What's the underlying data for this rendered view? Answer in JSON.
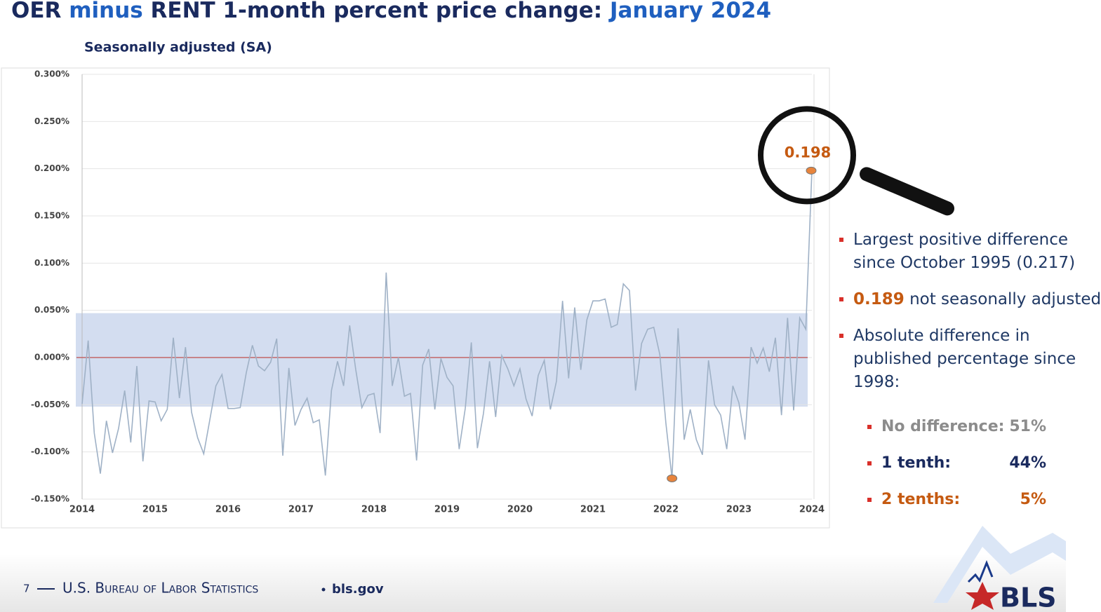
{
  "header": {
    "title_parts": [
      "OER",
      "minus",
      "RENT 1-month percent price change:",
      "January 2024"
    ]
  },
  "chart_data": {
    "type": "line",
    "subtitle": "Seasonally adjusted (SA)",
    "categories": [
      "2014",
      null,
      null,
      null,
      null,
      null,
      null,
      null,
      null,
      null,
      null,
      null,
      "2015",
      null,
      null,
      null,
      null,
      null,
      null,
      null,
      null,
      null,
      null,
      null,
      "2016",
      null,
      null,
      null,
      null,
      null,
      null,
      null,
      null,
      null,
      null,
      null,
      "2017",
      null,
      null,
      null,
      null,
      null,
      null,
      null,
      null,
      null,
      null,
      null,
      "2018",
      null,
      null,
      null,
      null,
      null,
      null,
      null,
      null,
      null,
      null,
      null,
      "2019",
      null,
      null,
      null,
      null,
      null,
      null,
      null,
      null,
      null,
      null,
      null,
      "2020",
      null,
      null,
      null,
      null,
      null,
      null,
      null,
      null,
      null,
      null,
      null,
      "2021",
      null,
      null,
      null,
      null,
      null,
      null,
      null,
      null,
      null,
      null,
      null,
      "2022",
      null,
      null,
      null,
      null,
      null,
      null,
      null,
      null,
      null,
      null,
      null,
      "2023",
      null,
      null,
      null,
      null,
      null,
      null,
      null,
      null,
      null,
      null,
      null,
      "2024"
    ],
    "values": [
      -0.049,
      0.018,
      -0.08,
      -0.123,
      -0.067,
      -0.101,
      -0.075,
      -0.035,
      -0.09,
      -0.009,
      -0.11,
      -0.046,
      -0.047,
      -0.067,
      -0.055,
      0.021,
      -0.043,
      0.011,
      -0.058,
      -0.085,
      -0.102,
      -0.066,
      -0.03,
      -0.018,
      -0.054,
      -0.054,
      -0.053,
      -0.016,
      0.013,
      -0.009,
      -0.014,
      -0.005,
      0.02,
      -0.104,
      -0.011,
      -0.072,
      -0.055,
      -0.043,
      -0.069,
      -0.066,
      -0.125,
      -0.035,
      -0.004,
      -0.03,
      0.034,
      -0.013,
      -0.053,
      -0.04,
      -0.038,
      -0.08,
      0.09,
      -0.03,
      0.0,
      -0.041,
      -0.038,
      -0.109,
      -0.008,
      0.009,
      -0.055,
      -0.001,
      -0.021,
      -0.03,
      -0.097,
      -0.054,
      0.016,
      -0.096,
      -0.059,
      -0.004,
      -0.063,
      0.002,
      -0.012,
      -0.03,
      -0.012,
      -0.044,
      -0.062,
      -0.019,
      -0.003,
      -0.055,
      -0.025,
      0.06,
      -0.022,
      0.053,
      -0.013,
      0.04,
      0.06,
      0.06,
      0.062,
      0.032,
      0.035,
      0.078,
      0.071,
      -0.035,
      0.015,
      0.03,
      0.032,
      0.003,
      -0.07,
      -0.128,
      0.031,
      -0.087,
      -0.055,
      -0.087,
      -0.103,
      -0.003,
      -0.05,
      -0.061,
      -0.097,
      -0.03,
      -0.048,
      -0.087,
      0.011,
      -0.006,
      0.01,
      -0.015,
      0.021,
      -0.061,
      0.042,
      -0.056,
      0.042,
      0.03,
      0.198
    ],
    "color": "#9fb1c6",
    "highlight_color": "#e8843c",
    "ylim": [
      -0.15,
      0.3
    ],
    "yticks": [
      {
        "value": -0.15,
        "label": "-0.150%"
      },
      {
        "value": -0.1,
        "label": "-0.100%"
      },
      {
        "value": -0.05,
        "label": "-0.050%"
      },
      {
        "value": 0,
        "label": "0.000%"
      },
      {
        "value": 0.05,
        "label": "0.050%"
      },
      {
        "value": 0.1,
        "label": "0.100%"
      },
      {
        "value": 0.15,
        "label": "0.150%"
      },
      {
        "value": 0.2,
        "label": "0.200%"
      },
      {
        "value": 0.25,
        "label": "0.250%"
      },
      {
        "value": 0.3,
        "label": "0.300%"
      }
    ],
    "grid": true,
    "shaded_band": [
      -0.052,
      0.047
    ],
    "band_color": "#d3ddf0",
    "reference_line": 0,
    "reference_color": "#c0504d"
  },
  "notes": {
    "bullets": [
      "Largest positive difference since October 1995 (0.217)"
    ],
    "nsa_value": "0.189",
    "nsa_text": "not seasonally adjusted",
    "abs_text": "Absolute difference in published percentage since 1998:",
    "breakdown": [
      [
        "No difference:",
        "51%"
      ],
      [
        "1 tenth:",
        "44%"
      ],
      [
        "2 tenths:",
        "5%"
      ]
    ]
  },
  "footer": {
    "page": "7",
    "agency": "U.S. Bureau of Labor Statistics",
    "site": "bls.gov",
    "logo": "BLS"
  }
}
